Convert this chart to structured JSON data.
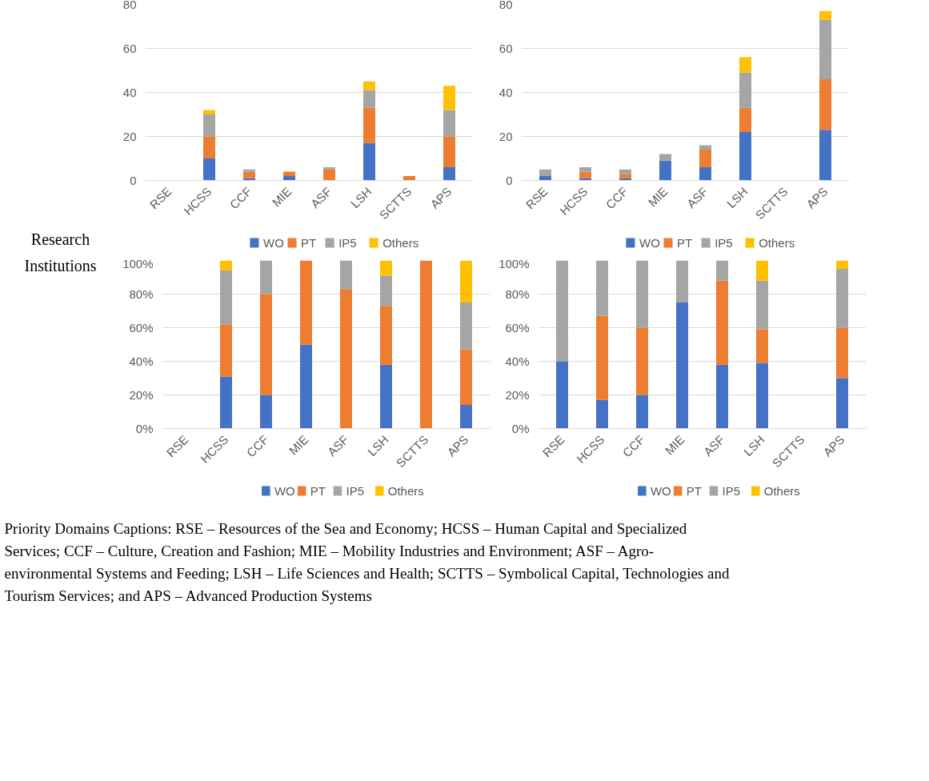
{
  "chart_data": [
    {
      "type": "bar",
      "stacked": true,
      "categories": [
        "RSE",
        "HCSS",
        "CCF",
        "MIE",
        "ASF",
        "LSH",
        "SCTTS",
        "APS"
      ],
      "ylim": [
        0,
        80
      ],
      "yticks": [
        0,
        20,
        40,
        60,
        80
      ],
      "grid": "y",
      "legend": "bottom",
      "annotations": [
        "Research Institutions",
        "Priority Domains Captions: RSE – Resources of the Sea and Economy; HCSS – Human Capital and Specialized Services; CCF – Culture, Creation and Fashion; MIE – Mobility Industries and Environment; ASF – Agro-environmental Systems and Feeding; LSH – Life Sciences and Health; SCTTS – Symbolical Capital, Technologies and Tourism Services; and APS – Advanced Production Systems"
      ],
      "series": [
        {
          "name": "WO",
          "color": "#4472c4",
          "values": [
            0,
            10,
            1,
            2,
            0,
            17,
            0,
            6
          ]
        },
        {
          "name": "PT",
          "color": "#ed7d31",
          "values": [
            0,
            10,
            3,
            2,
            5,
            16,
            2,
            14
          ]
        },
        {
          "name": "IP5",
          "color": "#a5a5a5",
          "values": [
            0,
            10,
            1,
            0,
            1,
            8,
            0,
            12
          ]
        },
        {
          "name": "Others",
          "color": "#ffc000",
          "values": [
            0,
            2,
            0,
            0,
            0,
            4,
            0,
            11
          ]
        }
      ]
    },
    {
      "type": "bar",
      "stacked": true,
      "categories": [
        "RSE",
        "HCSS",
        "CCF",
        "MIE",
        "ASF",
        "LSH",
        "SCTTS",
        "APS"
      ],
      "ylim": [
        0,
        80
      ],
      "yticks": [
        0,
        20,
        40,
        60,
        80
      ],
      "grid": "y",
      "legend": "bottom",
      "series": [
        {
          "name": "WO",
          "color": "#4472c4",
          "values": [
            2,
            1,
            1,
            9,
            6,
            22,
            0,
            23
          ]
        },
        {
          "name": "PT",
          "color": "#ed7d31",
          "values": [
            0,
            3,
            2,
            0,
            8,
            11,
            0,
            23
          ]
        },
        {
          "name": "IP5",
          "color": "#a5a5a5",
          "values": [
            3,
            2,
            2,
            3,
            2,
            16,
            0,
            27
          ]
        },
        {
          "name": "Others",
          "color": "#ffc000",
          "values": [
            0,
            0,
            0,
            0,
            0,
            7,
            0,
            4
          ]
        }
      ]
    },
    {
      "type": "bar",
      "stacked": true,
      "categories": [
        "RSE",
        "HCSS",
        "CCF",
        "MIE",
        "ASF",
        "LSH",
        "SCTTS",
        "APS"
      ],
      "ylim": [
        0,
        100
      ],
      "yticks": [
        {
          "value": 0,
          "label": "0%"
        },
        {
          "value": 20,
          "label": "20%"
        },
        {
          "value": 40,
          "label": "40%"
        },
        {
          "value": 60,
          "label": "60%"
        },
        {
          "value": 80,
          "label": "80%"
        },
        {
          "value": 100,
          "label": "100%"
        }
      ],
      "grid": "y",
      "legend": "bottom",
      "series": [
        {
          "name": "WO",
          "color": "#4472c4",
          "values": [
            0,
            31,
            20,
            50,
            0,
            38,
            0,
            14
          ]
        },
        {
          "name": "PT",
          "color": "#ed7d31",
          "values": [
            0,
            31,
            60,
            50,
            83,
            35,
            100,
            33
          ]
        },
        {
          "name": "IP5",
          "color": "#a5a5a5",
          "values": [
            0,
            32,
            20,
            0,
            17,
            18,
            0,
            28
          ]
        },
        {
          "name": "Others",
          "color": "#ffc000",
          "values": [
            0,
            6,
            0,
            0,
            0,
            9,
            0,
            25
          ]
        }
      ]
    },
    {
      "type": "bar",
      "stacked": true,
      "categories": [
        "RSE",
        "HCSS",
        "CCF",
        "MIE",
        "ASF",
        "LSH",
        "SCTTS",
        "APS"
      ],
      "ylim": [
        0,
        100
      ],
      "yticks": [
        {
          "value": 0,
          "label": "0%"
        },
        {
          "value": 20,
          "label": "20%"
        },
        {
          "value": 40,
          "label": "40%"
        },
        {
          "value": 60,
          "label": "60%"
        },
        {
          "value": 80,
          "label": "80%"
        },
        {
          "value": 100,
          "label": "100%"
        }
      ],
      "grid": "y",
      "legend": "bottom",
      "series": [
        {
          "name": "WO",
          "color": "#4472c4",
          "values": [
            40,
            17,
            20,
            75,
            38,
            39,
            0,
            30
          ]
        },
        {
          "name": "PT",
          "color": "#ed7d31",
          "values": [
            0,
            50,
            40,
            0,
            50,
            20,
            0,
            30
          ]
        },
        {
          "name": "IP5",
          "color": "#a5a5a5",
          "values": [
            60,
            33,
            40,
            25,
            12,
            29,
            0,
            35
          ]
        },
        {
          "name": "Others",
          "color": "#ffc000",
          "values": [
            0,
            0,
            0,
            0,
            0,
            12,
            0,
            5
          ]
        }
      ]
    }
  ]
}
